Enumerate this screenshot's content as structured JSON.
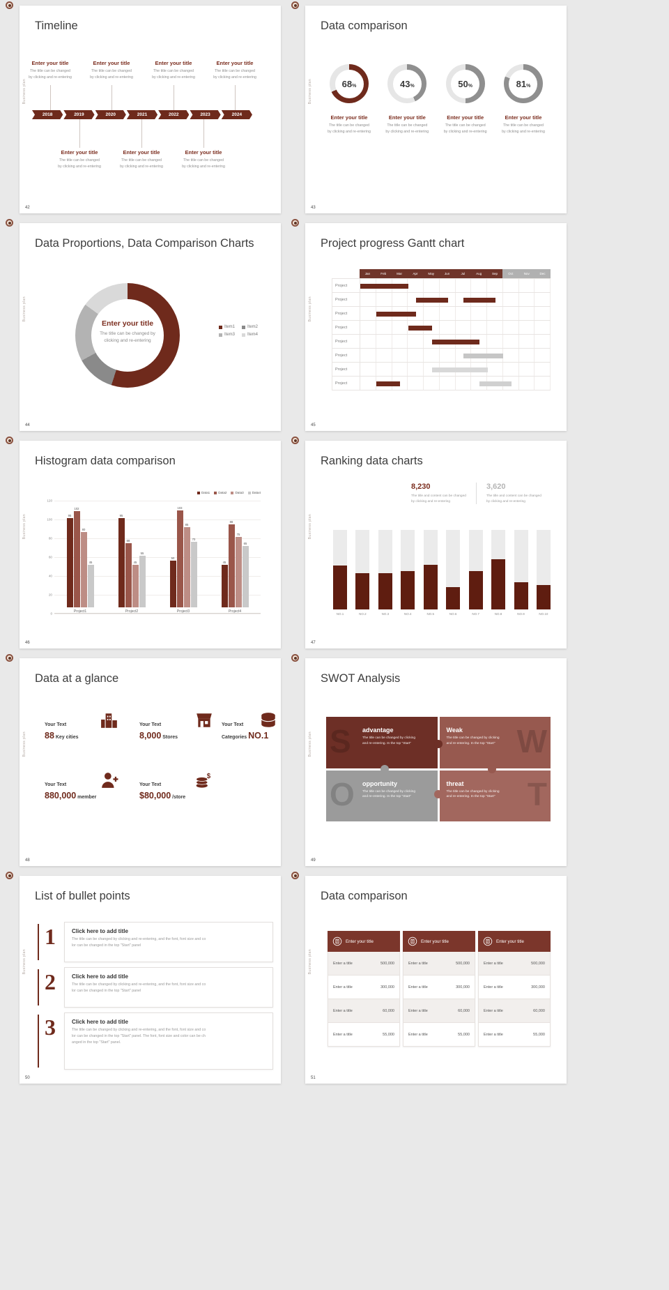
{
  "page": {
    "bg": "#e9e9e9",
    "accent": "#6f2a1c",
    "sidebar_label": "Business plan"
  },
  "common": {
    "entry_title": "Enter your title",
    "entry_desc_l1": "The title can be changed",
    "entry_desc_l2": "by clicking and re-entering"
  },
  "slide42": {
    "page_no": "42",
    "title": "Timeline",
    "years": [
      "2018",
      "2019",
      "2020",
      "2021",
      "2022",
      "2023",
      "2024"
    ],
    "top_entry_count": 4,
    "bottom_entry_count": 3
  },
  "slide43": {
    "page_no": "43",
    "title": "Data comparison",
    "chart_data": {
      "type": "donut-progress",
      "values": [
        68,
        43,
        50,
        81
      ],
      "arc_colors": [
        "#6f2a1c",
        "#8f8f8f",
        "#8f8f8f",
        "#8f8f8f"
      ],
      "track_color": "#e6e6e6"
    }
  },
  "slide44": {
    "page_no": "44",
    "title": "Data Proportions, Data Comparison Charts",
    "center_title": "Enter your title",
    "center_desc_l1": "The title can be changed by",
    "center_desc_l2": "clicking and re-entering",
    "chart_data": {
      "type": "pie",
      "labels": [
        "Item1",
        "Item2",
        "Item3",
        "Item4"
      ],
      "values": [
        55,
        12,
        18,
        15
      ],
      "colors": [
        "#6f2a1c",
        "#8a8a8a",
        "#b3b3b3",
        "#d9d9d9"
      ]
    }
  },
  "slide45": {
    "page_no": "45",
    "title": "Project progress Gantt chart",
    "row_label": "Project",
    "chart_data": {
      "type": "gantt",
      "months": [
        "Jan",
        "Feb",
        "Mar",
        "Apr",
        "May",
        "Jun",
        "Jul",
        "Aug",
        "Sep",
        "Oct",
        "Nov",
        "Dec"
      ],
      "month_colors": [
        "#6f352a",
        "#6f352a",
        "#6f352a",
        "#6f352a",
        "#6f352a",
        "#6f352a",
        "#6f352a",
        "#6f352a",
        "#6f352a",
        "#b1b1b1",
        "#b1b1b1",
        "#b1b1b1"
      ],
      "rows": [
        {
          "bars": [
            {
              "start": 0,
              "end": 3,
              "color": "#6e2a1c"
            }
          ]
        },
        {
          "bars": [
            {
              "start": 3.5,
              "end": 5.5,
              "color": "#6e2a1c"
            },
            {
              "start": 6.5,
              "end": 8.5,
              "color": "#6e2a1c"
            }
          ]
        },
        {
          "bars": [
            {
              "start": 1,
              "end": 3.5,
              "color": "#6e2a1c"
            }
          ]
        },
        {
          "bars": [
            {
              "start": 3,
              "end": 4.5,
              "color": "#6e2a1c"
            }
          ]
        },
        {
          "bars": [
            {
              "start": 4.5,
              "end": 7.5,
              "color": "#6e2a1c"
            }
          ]
        },
        {
          "bars": [
            {
              "start": 6.5,
              "end": 9,
              "color": "#c6c6c6"
            }
          ]
        },
        {
          "bars": [
            {
              "start": 4.5,
              "end": 8,
              "color": "#d8d8d8"
            }
          ]
        },
        {
          "bars": [
            {
              "start": 1,
              "end": 2.5,
              "color": "#6e2a1c"
            },
            {
              "start": 7.5,
              "end": 9.5,
              "color": "#d0d0d0"
            }
          ]
        }
      ]
    }
  },
  "slide46": {
    "page_no": "46",
    "title": "Histogram data comparison",
    "chart_data": {
      "type": "bar",
      "categories": [
        "Project1",
        "Project2",
        "Project3",
        "Project4"
      ],
      "series": [
        {
          "name": "Data1",
          "color": "#6f2a1c",
          "values": [
            95,
            95,
            50,
            45
          ]
        },
        {
          "name": "Data2",
          "color": "#9a564a",
          "values": [
            102,
            68,
            103,
            88
          ]
        },
        {
          "name": "Data3",
          "color": "#bd8d85",
          "values": [
            80,
            45,
            85,
            75
          ]
        },
        {
          "name": "Data4",
          "color": "#c9c9c9",
          "values": [
            45,
            55,
            70,
            65
          ]
        }
      ],
      "yticks": [
        0,
        20,
        40,
        60,
        80,
        100,
        120
      ],
      "ylim": [
        0,
        120
      ]
    }
  },
  "slide47": {
    "page_no": "47",
    "title": "Ranking data charts",
    "stat_primary": {
      "value": "8,230",
      "desc_l1": "The title and content can be changed",
      "desc_l2": "by clicking and re-entering"
    },
    "stat_secondary": {
      "value": "3,620",
      "desc_l1": "The title and content can be changed",
      "desc_l2": "by clicking and re-entering"
    },
    "chart_data": {
      "type": "bar",
      "categories": [
        "NO.1",
        "NO.2",
        "NO.3",
        "NO.4",
        "NO.5",
        "NO.6",
        "NO.7",
        "NO.8",
        "NO.9",
        "NO.10"
      ],
      "values": [
        55,
        46,
        46,
        48,
        56,
        28,
        48,
        63,
        34,
        31
      ],
      "max": 100,
      "bar_color": "#5f1d10",
      "track_color": "#ebebeb"
    }
  },
  "slide48": {
    "page_no": "48",
    "title": "Data at a glance",
    "stats": [
      {
        "label": "Your Text",
        "value": "88",
        "unit": "Key cities",
        "icon": "city-buildings-icon"
      },
      {
        "label": "Your Text",
        "value": "8,000",
        "unit": "Stores",
        "icon": "store-icon"
      },
      {
        "label": "Your Text",
        "prefix": "Categories",
        "value": "NO.1",
        "unit": "",
        "icon": "categories-icon"
      },
      {
        "label": "Your Text",
        "value": "880,000",
        "unit": "member",
        "icon": "member-icon"
      },
      {
        "label": "Your Text",
        "value": "$80,000",
        "unit": "/store",
        "icon": "coins-icon"
      }
    ]
  },
  "slide49": {
    "page_no": "49",
    "title": "SWOT Analysis",
    "blocks": [
      {
        "letter": "S",
        "heading": "advantage",
        "desc_l1": "The title can be changed by clicking",
        "desc_l2": "and re-entering. In the top \"Start\"",
        "color": "#6d2f26",
        "letter_side": "left"
      },
      {
        "letter": "W",
        "heading": "Weak",
        "desc_l1": "The title can be changed by clicking",
        "desc_l2": "and re-entering. In the top \"Start\"",
        "color": "#97594f",
        "letter_side": "right"
      },
      {
        "letter": "O",
        "heading": "opportunity",
        "desc_l1": "The title can be changed by clicking",
        "desc_l2": "and re-entering. In the top \"Start\"",
        "color": "#9b9b9b",
        "letter_side": "left"
      },
      {
        "letter": "T",
        "heading": "threat",
        "desc_l1": "The title can be changed by clicking",
        "desc_l2": "and re-entering. In the top \"Start\"",
        "color": "#a2675e",
        "letter_side": "right"
      }
    ]
  },
  "slide50": {
    "page_no": "50",
    "title": "List of bullet points",
    "items": [
      {
        "num": "1",
        "heading": "Click here to add title",
        "desc_lines": [
          "The title can be changed by clicking and re-entering, and the font, font size and co",
          "lor can be changed in the top \"Start\" panel"
        ]
      },
      {
        "num": "2",
        "heading": "Click here to add title",
        "desc_lines": [
          "The title can be changed by clicking and re-entering, and the font, font size and co",
          "lor can be changed in the top \"Start\" panel"
        ]
      },
      {
        "num": "3",
        "heading": "Click here to add title",
        "desc_lines": [
          "The title can be changed by clicking and re-entering, and the font, font size and co",
          "lor can be changed in the top \"Start\" panel. The font, font size and color can be ch",
          "anged in the top \"Start\" panel."
        ]
      }
    ]
  },
  "slide51": {
    "page_no": "51",
    "title": "Data comparison",
    "tables": [
      {
        "header": "Enter your title",
        "rows": [
          [
            "Enter a title",
            "500,000"
          ],
          [
            "Enter a title",
            "300,000"
          ],
          [
            "Enter a title",
            "60,000"
          ],
          [
            "Enter a title",
            "55,000"
          ]
        ]
      },
      {
        "header": "Enter your title",
        "rows": [
          [
            "Enter a title",
            "500,000"
          ],
          [
            "Enter a title",
            "300,000"
          ],
          [
            "Enter a title",
            "60,000"
          ],
          [
            "Enter a title",
            "55,000"
          ]
        ]
      },
      {
        "header": "Enter your title",
        "rows": [
          [
            "Enter a title",
            "500,000"
          ],
          [
            "Enter a title",
            "300,000"
          ],
          [
            "Enter a title",
            "60,000"
          ],
          [
            "Enter a title",
            "55,000"
          ]
        ]
      }
    ]
  }
}
